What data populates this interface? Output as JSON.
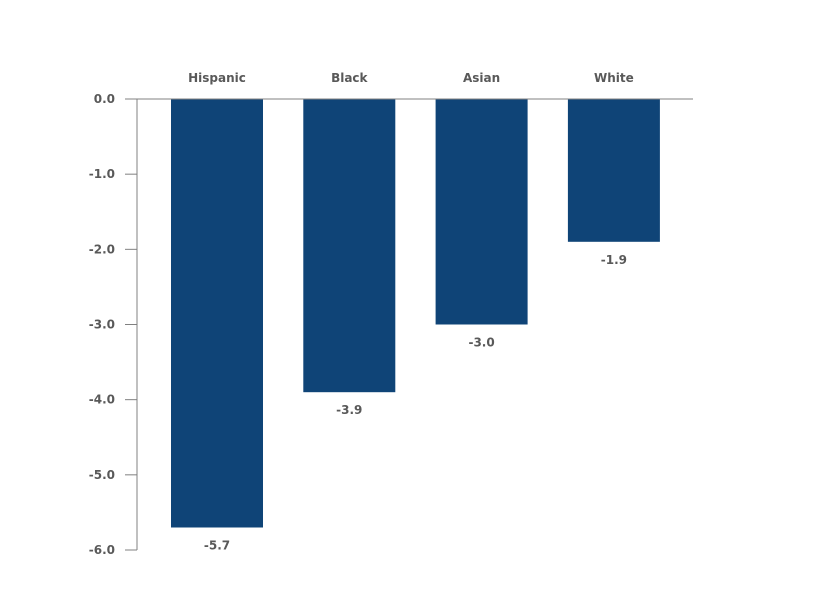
{
  "chart_data": {
    "type": "bar",
    "categories": [
      "Hispanic",
      "Black",
      "Asian",
      "White"
    ],
    "values": [
      -5.7,
      -3.9,
      -3.0,
      -1.9
    ],
    "value_labels": [
      "-5.7",
      "-3.9",
      "-3.0",
      "-1.9"
    ],
    "title": "",
    "xlabel": "",
    "ylabel": "",
    "ylim": [
      -6.0,
      0.0
    ],
    "yticks": [
      0.0,
      -1.0,
      -2.0,
      -3.0,
      -4.0,
      -5.0,
      -6.0
    ],
    "ytick_labels": [
      "0.0",
      "-1.0",
      "-2.0",
      "-3.0",
      "-4.0",
      "-5.0",
      "-6.0"
    ],
    "category_axis_position": "top",
    "grid": false,
    "legend": "none",
    "bar_color": "#0f4477"
  }
}
